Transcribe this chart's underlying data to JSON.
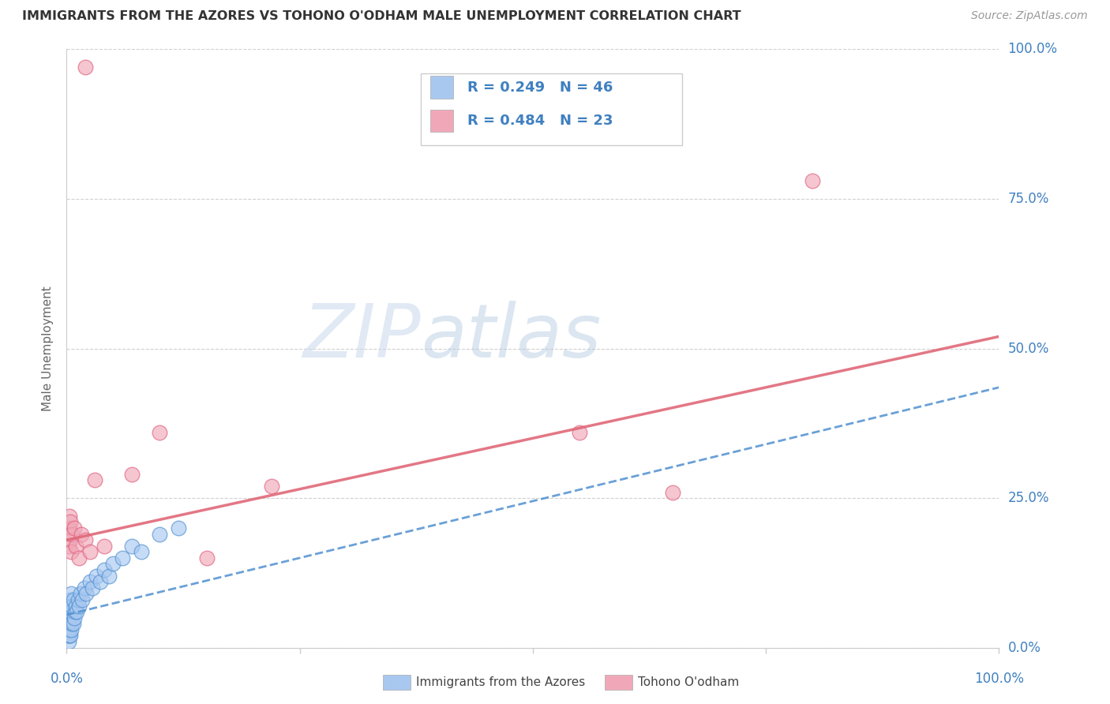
{
  "title": "IMMIGRANTS FROM THE AZORES VS TOHONO O'ODHAM MALE UNEMPLOYMENT CORRELATION CHART",
  "source": "Source: ZipAtlas.com",
  "ylabel": "Male Unemployment",
  "ytick_labels": [
    "0.0%",
    "25.0%",
    "50.0%",
    "75.0%",
    "100.0%"
  ],
  "ytick_positions": [
    0.0,
    0.25,
    0.5,
    0.75,
    1.0
  ],
  "xtick_labels": [
    "0.0%",
    "100.0%"
  ],
  "legend_blue_label": "Immigrants from the Azores",
  "legend_pink_label": "Tohono O'odham",
  "legend_blue_R": "R = 0.249",
  "legend_blue_N": "N = 46",
  "legend_pink_R": "R = 0.484",
  "legend_pink_N": "N = 23",
  "blue_fill": "#a8c8f0",
  "blue_edge": "#5090d0",
  "pink_fill": "#f0a8b8",
  "pink_edge": "#e06080",
  "blue_line_color": "#5090d0",
  "pink_line_color": "#e06878",
  "blue_scatter_x": [
    0.001,
    0.001,
    0.001,
    0.001,
    0.002,
    0.002,
    0.002,
    0.002,
    0.002,
    0.003,
    0.003,
    0.003,
    0.003,
    0.003,
    0.004,
    0.004,
    0.004,
    0.005,
    0.005,
    0.005,
    0.006,
    0.006,
    0.007,
    0.007,
    0.008,
    0.009,
    0.01,
    0.011,
    0.012,
    0.013,
    0.015,
    0.017,
    0.019,
    0.021,
    0.025,
    0.028,
    0.032,
    0.036,
    0.04,
    0.045,
    0.05,
    0.06,
    0.07,
    0.08,
    0.1,
    0.12
  ],
  "blue_scatter_y": [
    0.02,
    0.03,
    0.04,
    0.05,
    0.01,
    0.02,
    0.03,
    0.04,
    0.06,
    0.02,
    0.03,
    0.04,
    0.05,
    0.07,
    0.02,
    0.05,
    0.08,
    0.03,
    0.06,
    0.09,
    0.04,
    0.07,
    0.04,
    0.08,
    0.05,
    0.06,
    0.07,
    0.06,
    0.08,
    0.07,
    0.09,
    0.08,
    0.1,
    0.09,
    0.11,
    0.1,
    0.12,
    0.11,
    0.13,
    0.12,
    0.14,
    0.15,
    0.17,
    0.16,
    0.19,
    0.2
  ],
  "pink_scatter_x": [
    0.002,
    0.003,
    0.003,
    0.004,
    0.004,
    0.005,
    0.006,
    0.008,
    0.01,
    0.013,
    0.016,
    0.02,
    0.025,
    0.03,
    0.04,
    0.07,
    0.1,
    0.15,
    0.22,
    0.55,
    0.65,
    0.8,
    0.02
  ],
  "pink_scatter_y": [
    0.17,
    0.2,
    0.22,
    0.18,
    0.21,
    0.16,
    0.19,
    0.2,
    0.17,
    0.15,
    0.19,
    0.18,
    0.16,
    0.28,
    0.17,
    0.29,
    0.36,
    0.15,
    0.27,
    0.36,
    0.26,
    0.78,
    0.97
  ],
  "blue_line_x": [
    0.0,
    1.0
  ],
  "blue_line_y": [
    0.055,
    0.435
  ],
  "pink_line_x": [
    0.0,
    1.0
  ],
  "pink_line_y": [
    0.18,
    0.52
  ],
  "xlim": [
    0.0,
    1.0
  ],
  "ylim": [
    0.0,
    1.0
  ],
  "watermark_zip": "ZIP",
  "watermark_atlas": "atlas",
  "background_color": "#ffffff",
  "grid_color": "#d0d0d0",
  "text_color": "#4080c0",
  "label_color": "#666666"
}
